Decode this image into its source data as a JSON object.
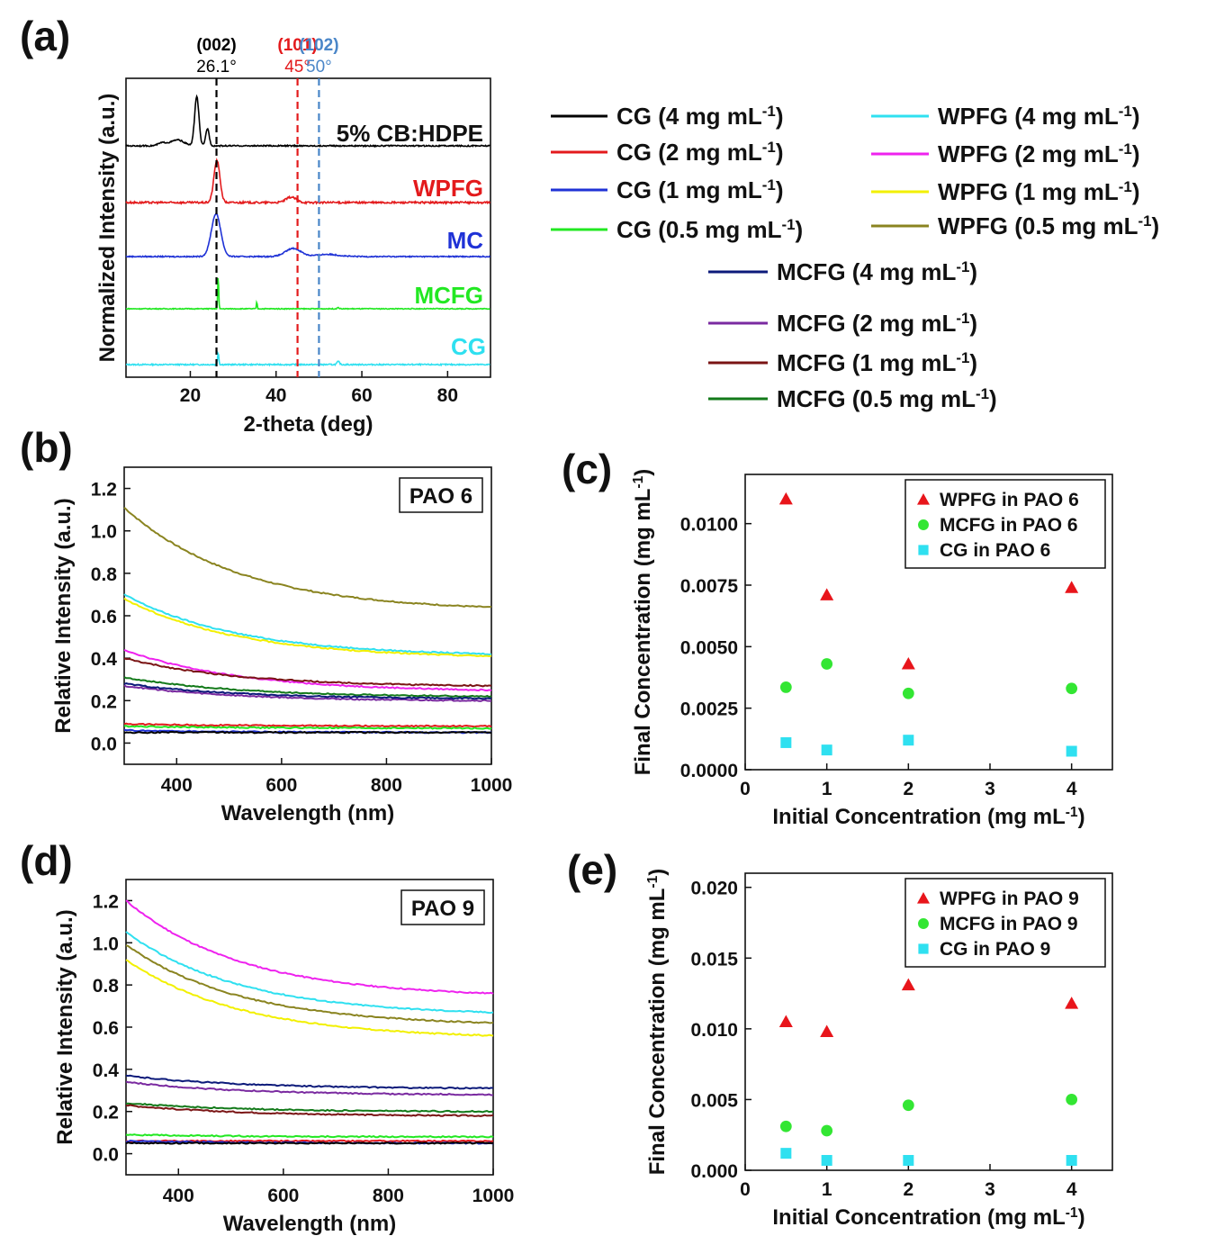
{
  "panel_labels": {
    "a": "(a)",
    "b": "(b)",
    "c": "(c)",
    "d": "(d)",
    "e": "(e)"
  },
  "legend": {
    "entries": [
      {
        "name": "CG (4 mg mL",
        "sup": "-1",
        "close": ")",
        "color": "#000000"
      },
      {
        "name": "CG (2 mg mL",
        "sup": "-1",
        "close": ")",
        "color": "#e31a1c"
      },
      {
        "name": "CG (1 mg mL",
        "sup": "-1",
        "close": ")",
        "color": "#1f32d6"
      },
      {
        "name": "CG (0.5 mg mL",
        "sup": "-1",
        "close": ")",
        "color": "#22e822"
      },
      {
        "name": "WPFG (4 mg mL",
        "sup": "-1",
        "close": ")",
        "color": "#2fe0f0"
      },
      {
        "name": "WPFG (2 mg mL",
        "sup": "-1",
        "close": ")",
        "color": "#ee22ee"
      },
      {
        "name": "WPFG (1 mg mL",
        "sup": "-1",
        "close": ")",
        "color": "#f2f000"
      },
      {
        "name": "WPFG (0.5 mg mL",
        "sup": "-1",
        "close": ")",
        "color": "#8a8420"
      },
      {
        "name": "MCFG (4 mg mL",
        "sup": "-1",
        "close": ")",
        "color": "#0c1a7a"
      },
      {
        "name": "MCFG (2 mg mL",
        "sup": "-1",
        "close": ")",
        "color": "#7a2aa0"
      },
      {
        "name": "MCFG (1 mg mL",
        "sup": "-1",
        "close": ")",
        "color": "#7a1414"
      },
      {
        "name": "MCFG (0.5 mg mL",
        "sup": "-1",
        "close": ")",
        "color": "#137a1a"
      }
    ]
  },
  "chart_data": [
    {
      "id": "a",
      "type": "line",
      "xlabel": "2-theta (deg)",
      "ylabel": "Normalized Intensity (a.u.)",
      "xlim": [
        5,
        90
      ],
      "xticks": [
        20,
        40,
        60,
        80
      ],
      "reference_lines": [
        {
          "x": 26.1,
          "hkl": "(002)",
          "angle": "26.1°",
          "color": "#000000"
        },
        {
          "x": 45,
          "hkl": "(101)",
          "angle": "45°",
          "color": "#e31a1c"
        },
        {
          "x": 50,
          "hkl": "(102)",
          "angle": "50°",
          "color": "#4a86c8"
        }
      ],
      "series": [
        {
          "name": "5% CB:HDPE",
          "color": "#000000",
          "baseline": 4,
          "peaks": [
            [
              13.5,
              0.06,
              1.0
            ],
            [
              17,
              0.12,
              1.5
            ],
            [
              21.5,
              1.0,
              0.5
            ],
            [
              24,
              0.35,
              0.4
            ]
          ]
        },
        {
          "name": "WPFG",
          "color": "#e31a1c",
          "baseline": 3,
          "peaks": [
            [
              26.2,
              0.55,
              0.7
            ],
            [
              43.5,
              0.07,
              1.2
            ]
          ]
        },
        {
          "name": "MC",
          "color": "#1f32d6",
          "baseline": 2,
          "peaks": [
            [
              26,
              0.95,
              1.1
            ],
            [
              44,
              0.18,
              1.8
            ],
            [
              52,
              0.05,
              2.5
            ]
          ]
        },
        {
          "name": "MCFG",
          "color": "#22e822",
          "baseline": 1,
          "peaks": [
            [
              26.5,
              1.0,
              0.12
            ],
            [
              35.5,
              0.22,
              0.1
            ],
            [
              54.5,
              0.04,
              0.2
            ]
          ]
        },
        {
          "name": "CG",
          "color": "#2fe0f0",
          "baseline": 0,
          "peaks": [
            [
              26.5,
              0.25,
              0.15
            ],
            [
              54.5,
              0.06,
              0.3
            ]
          ]
        }
      ]
    },
    {
      "id": "b",
      "type": "line",
      "box_label": "PAO 6",
      "xlabel": "Wavelength (nm)",
      "ylabel": "Relative Intensity (a.u.)",
      "xlim": [
        300,
        1000
      ],
      "ylim": [
        -0.1,
        1.3
      ],
      "xticks": [
        400,
        600,
        800,
        1000
      ],
      "yticks": [
        0.0,
        0.2,
        0.4,
        0.6,
        0.8,
        1.0,
        1.2
      ],
      "series": [
        {
          "name": "WPFG (0.5 mg mL-1)",
          "color": "#8a8420",
          "start": 1.11,
          "end": 0.64
        },
        {
          "name": "WPFG (4 mg mL-1)",
          "color": "#2fe0f0",
          "start": 0.7,
          "end": 0.42
        },
        {
          "name": "WPFG (1 mg mL-1)",
          "color": "#f2f000",
          "start": 0.68,
          "end": 0.41
        },
        {
          "name": "WPFG (2 mg mL-1)",
          "color": "#ee22ee",
          "start": 0.44,
          "end": 0.25
        },
        {
          "name": "MCFG (1 mg mL-1)",
          "color": "#7a1414",
          "start": 0.4,
          "end": 0.27
        },
        {
          "name": "MCFG (0.5 mg mL-1)",
          "color": "#137a1a",
          "start": 0.31,
          "end": 0.22
        },
        {
          "name": "MCFG (2 mg mL-1)",
          "color": "#7a2aa0",
          "start": 0.27,
          "end": 0.2
        },
        {
          "name": "MCFG (4 mg mL-1)",
          "color": "#0c1a7a",
          "start": 0.28,
          "end": 0.21
        },
        {
          "name": "CG (2 mg mL-1)",
          "color": "#e31a1c",
          "start": 0.09,
          "end": 0.08
        },
        {
          "name": "CG (0.5 mg mL-1)",
          "color": "#22e822",
          "start": 0.08,
          "end": 0.07
        },
        {
          "name": "CG (1 mg mL-1)",
          "color": "#1f32d6",
          "start": 0.06,
          "end": 0.05
        },
        {
          "name": "CG (4 mg mL-1)",
          "color": "#000000",
          "start": 0.05,
          "end": 0.05
        }
      ]
    },
    {
      "id": "c",
      "type": "scatter",
      "xlabel": "Initial Concentration (mg mL",
      "xlabel_sup": "-1",
      "ylabel": "Final Concentration (mg mL",
      "ylabel_sup": "-1",
      "xlim": [
        0,
        4.5
      ],
      "ylim": [
        0,
        0.012
      ],
      "xticks": [
        0,
        1,
        2,
        3,
        4
      ],
      "yticks": [
        0.0,
        0.0025,
        0.005,
        0.0075,
        0.01
      ],
      "ytick_labels": [
        "0.0000",
        "0.0025",
        "0.0050",
        "0.0075",
        "0.0100"
      ],
      "series": [
        {
          "name": "WPFG in PAO 6",
          "marker": "triangle",
          "color": "#e8151b",
          "x": [
            0.5,
            1,
            2,
            4
          ],
          "y": [
            0.011,
            0.0071,
            0.0043,
            0.0074
          ]
        },
        {
          "name": "MCFG in PAO 6",
          "marker": "circle",
          "color": "#33e633",
          "x": [
            0.5,
            1,
            2,
            4
          ],
          "y": [
            0.00335,
            0.0043,
            0.0031,
            0.0033
          ]
        },
        {
          "name": "CG in PAO 6",
          "marker": "square",
          "color": "#2fe0f0",
          "x": [
            0.5,
            1,
            2,
            4
          ],
          "y": [
            0.0011,
            0.0008,
            0.0012,
            0.00075
          ]
        }
      ]
    },
    {
      "id": "d",
      "type": "line",
      "box_label": "PAO 9",
      "xlabel": "Wavelength (nm)",
      "ylabel": "Relative Intensity (a.u.)",
      "xlim": [
        300,
        1000
      ],
      "ylim": [
        -0.1,
        1.3
      ],
      "xticks": [
        400,
        600,
        800,
        1000
      ],
      "yticks": [
        0.0,
        0.2,
        0.4,
        0.6,
        0.8,
        1.0,
        1.2
      ],
      "series": [
        {
          "name": "WPFG (2 mg mL-1)",
          "color": "#ee22ee",
          "start": 1.2,
          "end": 0.76
        },
        {
          "name": "WPFG (4 mg mL-1)",
          "color": "#2fe0f0",
          "start": 1.05,
          "end": 0.67
        },
        {
          "name": "WPFG (0.5 mg mL-1)",
          "color": "#8a8420",
          "start": 0.99,
          "end": 0.62
        },
        {
          "name": "WPFG (1 mg mL-1)",
          "color": "#f2f000",
          "start": 0.92,
          "end": 0.56
        },
        {
          "name": "MCFG (4 mg mL-1)",
          "color": "#0c1a7a",
          "start": 0.37,
          "end": 0.31
        },
        {
          "name": "MCFG (2 mg mL-1)",
          "color": "#7a2aa0",
          "start": 0.34,
          "end": 0.28
        },
        {
          "name": "MCFG (0.5 mg mL-1)",
          "color": "#137a1a",
          "start": 0.24,
          "end": 0.2
        },
        {
          "name": "MCFG (1 mg mL-1)",
          "color": "#7a1414",
          "start": 0.23,
          "end": 0.18
        },
        {
          "name": "CG (0.5 mg mL-1)",
          "color": "#22e822",
          "start": 0.09,
          "end": 0.08
        },
        {
          "name": "CG (2 mg mL-1)",
          "color": "#e31a1c",
          "start": 0.06,
          "end": 0.06
        },
        {
          "name": "CG (1 mg mL-1)",
          "color": "#1f32d6",
          "start": 0.06,
          "end": 0.05
        },
        {
          "name": "CG (4 mg mL-1)",
          "color": "#000000",
          "start": 0.05,
          "end": 0.05
        }
      ]
    },
    {
      "id": "e",
      "type": "scatter",
      "xlabel": "Initial Concentration (mg mL",
      "xlabel_sup": "-1",
      "ylabel": "Final Concentration (mg mL",
      "ylabel_sup": "-1",
      "xlim": [
        0,
        4.5
      ],
      "ylim": [
        0,
        0.021
      ],
      "xticks": [
        0,
        1,
        2,
        3,
        4
      ],
      "yticks": [
        0.0,
        0.005,
        0.01,
        0.015,
        0.02
      ],
      "ytick_labels": [
        "0.000",
        "0.005",
        "0.010",
        "0.015",
        "0.020"
      ],
      "series": [
        {
          "name": "WPFG in PAO 9",
          "marker": "triangle",
          "color": "#e8151b",
          "x": [
            0.5,
            1,
            2,
            4
          ],
          "y": [
            0.0105,
            0.0098,
            0.0131,
            0.0118
          ]
        },
        {
          "name": "MCFG in PAO 9",
          "marker": "circle",
          "color": "#33e633",
          "x": [
            0.5,
            1,
            2,
            4
          ],
          "y": [
            0.0031,
            0.0028,
            0.0046,
            0.005
          ]
        },
        {
          "name": "CG in PAO 9",
          "marker": "square",
          "color": "#2fe0f0",
          "x": [
            0.5,
            1,
            2,
            4
          ],
          "y": [
            0.0012,
            0.0007,
            0.0007,
            0.0007
          ]
        }
      ]
    }
  ]
}
